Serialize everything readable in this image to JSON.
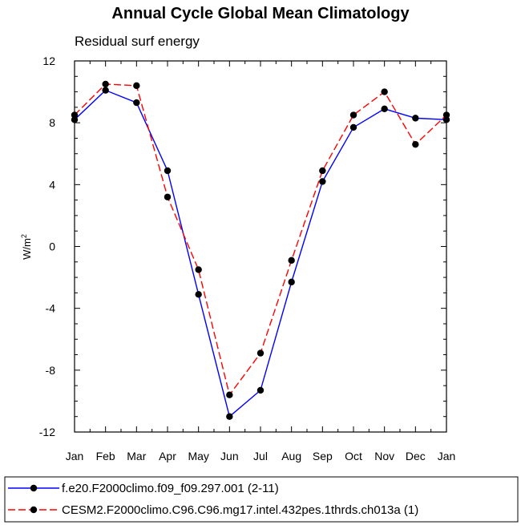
{
  "chart_data": {
    "type": "line",
    "title": "Annual Cycle Global Mean Climatology",
    "subtitle": "Residual surf energy",
    "ylabel": "W/m",
    "ylabel_sup": "2",
    "xlabel": "",
    "categories": [
      "Jan",
      "Feb",
      "Mar",
      "Apr",
      "May",
      "Jun",
      "Jul",
      "Aug",
      "Sep",
      "Oct",
      "Nov",
      "Dec",
      "Jan"
    ],
    "ylim": [
      -12,
      12
    ],
    "yticks": [
      -12,
      -8,
      -4,
      0,
      4,
      8,
      12
    ],
    "yticklabels": [
      "-12",
      "-8",
      "-4",
      "0",
      "4",
      "8",
      "12"
    ],
    "series": [
      {
        "name": "f.e20.F2000climo.f09_f09.297.001 (2-11)",
        "color": "#0000ff",
        "dash": "solid",
        "values": [
          8.2,
          10.1,
          9.3,
          4.9,
          -3.1,
          -11.0,
          -9.3,
          -2.3,
          4.2,
          7.7,
          8.9,
          8.3,
          8.2
        ]
      },
      {
        "name": "CESM2.F2000climo.C96.C96.mg17.intel.432pes.1thrds.ch013a (1)",
        "color": "#ff0000",
        "dash": "dashed",
        "values": [
          8.5,
          10.5,
          10.4,
          3.2,
          -1.5,
          -9.6,
          -6.9,
          -0.9,
          4.9,
          8.5,
          10.0,
          6.6,
          8.5
        ]
      }
    ],
    "legend_position": "bottom"
  }
}
